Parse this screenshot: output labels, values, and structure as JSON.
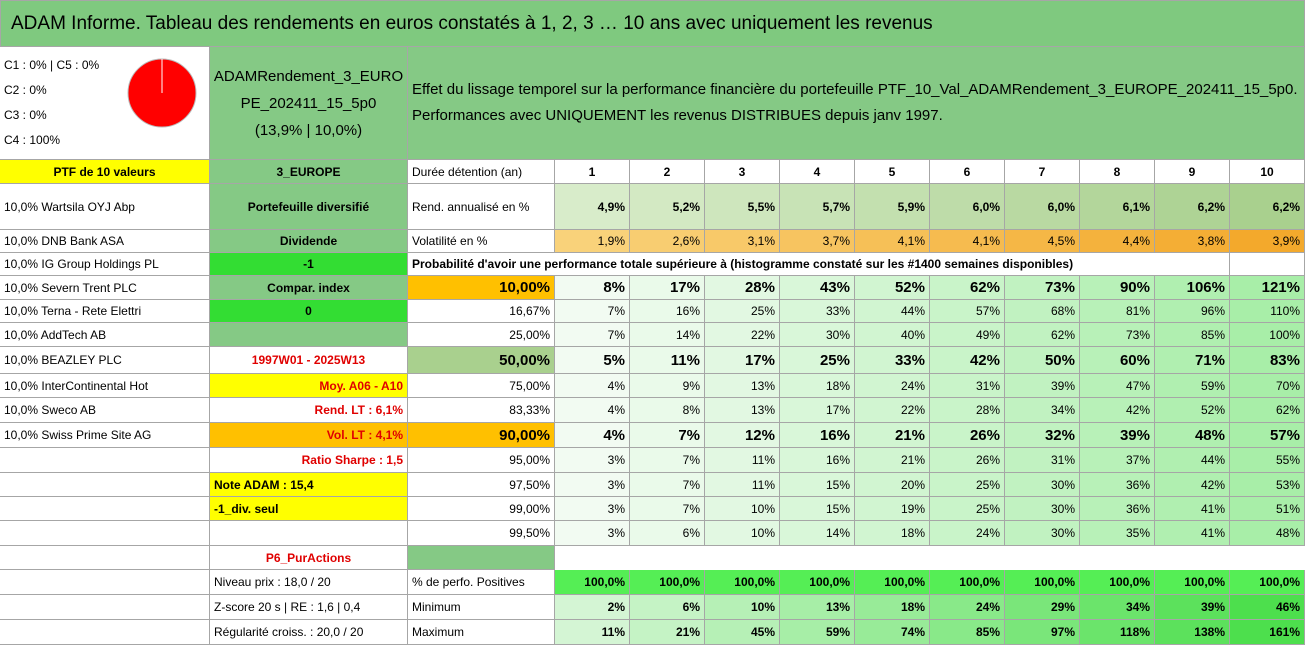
{
  "header": {
    "title": "ADAM Informe. Tableau des rendements en euros constatés à 1, 2, 3 … 10 ans avec uniquement les revenus"
  },
  "summary": {
    "allocation": [
      "C1 : 0% | C5 : 0%",
      "C2 : 0%",
      "C3 : 0%",
      "C4 : 100%"
    ],
    "portfolio_name": [
      "ADAMRendement_3_EURO",
      "PE_202411_15_5p0",
      "(13,9% | 10,0%)"
    ],
    "description": "Effet du lissage temporel sur la performance financière du portefeuille PTF_10_Val_ADAMRendement_3_EUROPE_202411_15_5p0. Performances avec UNIQUEMENT les revenus DISTRIBUES depuis janv 1997."
  },
  "table": {
    "rows": [
      [
        "PTF de 10 valeurs",
        "3_EUROPE",
        "Durée détention (an)",
        1,
        2,
        3,
        4,
        5,
        6,
        7,
        8,
        9,
        10
      ],
      [
        "10,0% Wartsila OYJ Abp",
        "Portefeuille diversifié",
        "Rend. annualisé en %",
        "4,9%",
        "5,2%",
        "5,5%",
        "5,7%",
        "5,9%",
        "6,0%",
        "6,0%",
        "6,1%",
        "6,2%",
        "6,2%"
      ],
      [
        "10,0% DNB Bank ASA",
        "Dividende",
        "Volatilité en %",
        "1,9%",
        "2,6%",
        "3,1%",
        "3,7%",
        "4,1%",
        "4,1%",
        "4,5%",
        "4,4%",
        "3,8%",
        "3,9%"
      ],
      [
        "10,0% IG Group Holdings PL",
        "-1",
        "Probabilité d'avoir une performance totale supérieure à (histogramme constaté sur les #1400 semaines disponibles)"
      ],
      [
        "10,0% Severn Trent PLC",
        "Compar. index",
        "10,00%",
        "8%",
        "17%",
        "28%",
        "43%",
        "52%",
        "62%",
        "73%",
        "90%",
        "106%",
        "121%"
      ],
      [
        "10,0% Terna - Rete Elettri",
        "0",
        "16,67%",
        "7%",
        "16%",
        "25%",
        "33%",
        "44%",
        "57%",
        "68%",
        "81%",
        "96%",
        "110%"
      ],
      [
        "10,0% AddTech AB",
        "25,00%",
        "7%",
        "14%",
        "22%",
        "30%",
        "40%",
        "49%",
        "62%",
        "73%",
        "85%",
        "100%"
      ],
      [
        "10,0% BEAZLEY PLC",
        "1997W01 - 2025W13",
        "50,00%",
        "5%",
        "11%",
        "17%",
        "25%",
        "33%",
        "42%",
        "50%",
        "60%",
        "71%",
        "83%"
      ],
      [
        "10,0% InterContinental Hot",
        "Moy. A06 - A10",
        "75,00%",
        "4%",
        "9%",
        "13%",
        "18%",
        "24%",
        "31%",
        "39%",
        "47%",
        "59%",
        "70%"
      ],
      [
        "10,0% Sweco AB",
        "Rend. LT : 6,1%",
        "83,33%",
        "4%",
        "8%",
        "13%",
        "17%",
        "22%",
        "28%",
        "34%",
        "42%",
        "52%",
        "62%"
      ],
      [
        "10,0% Swiss Prime Site AG",
        "Vol. LT : 4,1%",
        "90,00%",
        "4%",
        "7%",
        "12%",
        "16%",
        "21%",
        "26%",
        "32%",
        "39%",
        "48%",
        "57%"
      ],
      [
        "Ratio Sharpe : 1,5",
        "95,00%",
        "3%",
        "7%",
        "11%",
        "16%",
        "21%",
        "26%",
        "31%",
        "37%",
        "44%",
        "55%"
      ],
      [
        "Note ADAM : 15,4",
        "97,50%",
        "3%",
        "7%",
        "11%",
        "15%",
        "20%",
        "25%",
        "30%",
        "36%",
        "42%",
        "53%"
      ],
      [
        "-1_div. seul",
        "99,00%",
        "3%",
        "7%",
        "10%",
        "15%",
        "19%",
        "25%",
        "30%",
        "36%",
        "41%",
        "51%"
      ],
      [
        "99,50%",
        "3%",
        "6%",
        "10%",
        "14%",
        "18%",
        "24%",
        "30%",
        "35%",
        "41%",
        "48%"
      ],
      [
        "P6_PurActions"
      ],
      [
        "Niveau prix : 18,0 / 20",
        "% de perfo. Positives",
        "100,0%",
        "100,0%",
        "100,0%",
        "100,0%",
        "100,0%",
        "100,0%",
        "100,0%",
        "100,0%",
        "100,0%",
        "100,0%"
      ],
      [
        "Z-score 20 s | RE : 1,6 | 0,4",
        "Minimum",
        "2%",
        "6%",
        "10%",
        "13%",
        "18%",
        "24%",
        "29%",
        "34%",
        "39%",
        "46%"
      ],
      [
        "Régularité croiss. : 20,0 / 20",
        "Maximum",
        "11%",
        "21%",
        "45%",
        "59%",
        "74%",
        "85%",
        "97%",
        "118%",
        "138%",
        "161%"
      ]
    ]
  }
}
